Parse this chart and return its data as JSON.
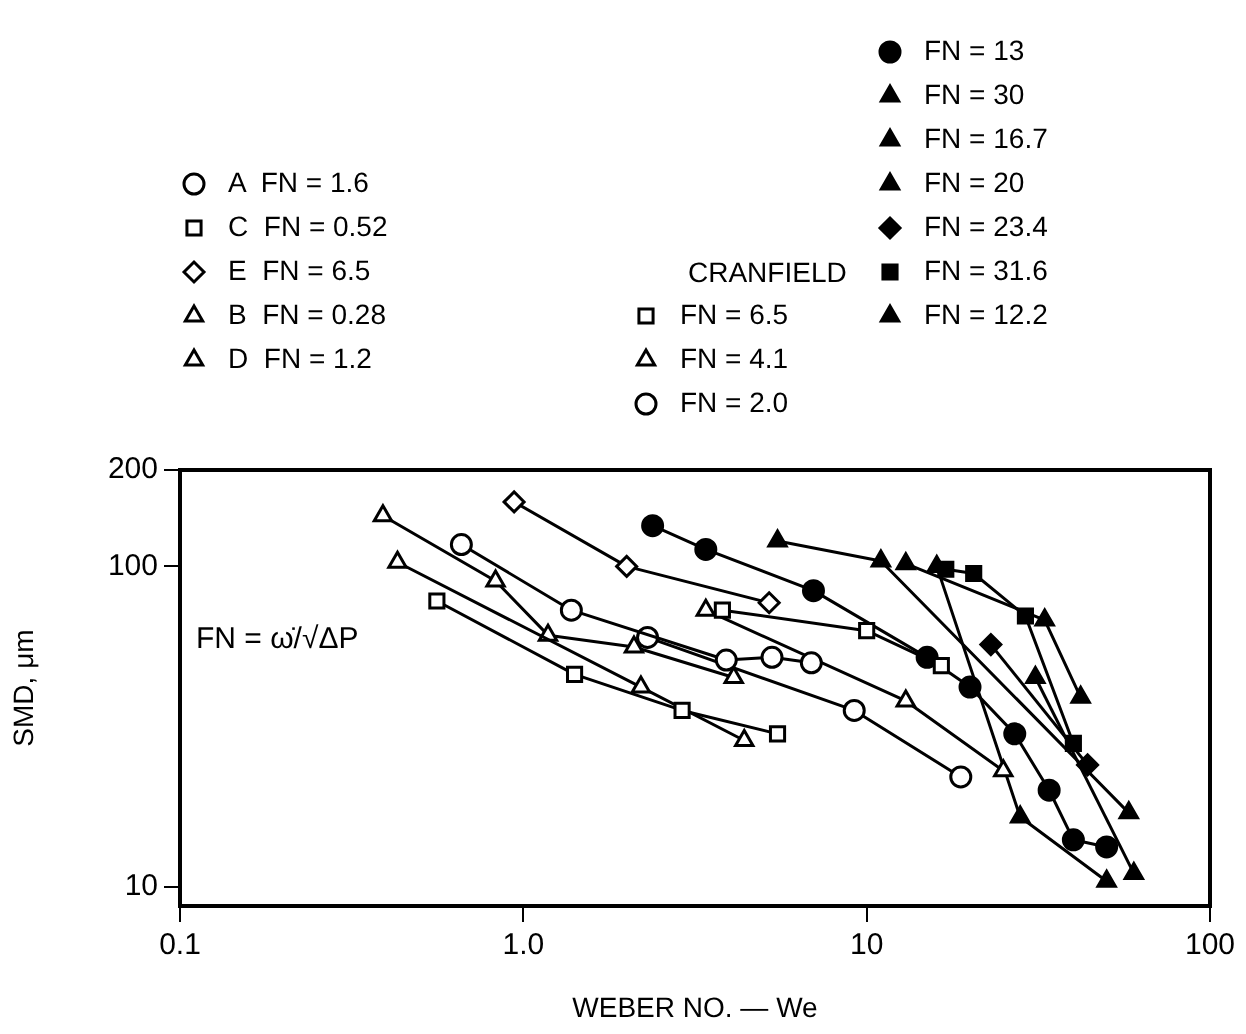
{
  "chart_data": {
    "type": "line",
    "xlabel": "WEBER NO. — We",
    "ylabel": "SMD, μm",
    "log": "xy",
    "xlim": [
      0.1,
      100
    ],
    "ylim": [
      8.7,
      200
    ],
    "xticks": [
      0.1,
      {
        "value": 1,
        "label": "1.0"
      },
      10,
      100
    ],
    "yticks": [
      10,
      100,
      200
    ],
    "grid": false,
    "legend": "top",
    "annotations": [
      "CRANFIELD",
      "FN = ω̇/√ΔP"
    ],
    "series": [
      {
        "name": "A  FN = 1.6",
        "color": "#ffffff",
        "marker": "circle",
        "x": [
          0.66,
          1.38,
          3.9,
          5.3,
          6.9
        ],
        "values": [
          117,
          73,
          51,
          52,
          50
        ]
      },
      {
        "name": "C  FN = 0.52",
        "color": "#ffffff",
        "marker": "square",
        "x": [
          0.56,
          1.41,
          2.9,
          5.5
        ],
        "values": [
          78,
          46,
          35.5,
          30
        ]
      },
      {
        "name": "E  FN = 6.5",
        "color": "#ffffff",
        "marker": "diamond",
        "x": [
          0.94,
          2,
          5.2
        ],
        "values": [
          159,
          100,
          77
        ]
      },
      {
        "name": "B  FN = 0.28",
        "color": "#ffffff",
        "marker": "triangle",
        "x": [
          0.43,
          2.2,
          4.4
        ],
        "values": [
          103,
          42,
          28.6
        ]
      },
      {
        "name": "D  FN = 1.2",
        "color": "#ffffff",
        "marker": "triangle",
        "x": [
          0.39,
          0.83,
          1.18,
          2.1,
          4.1
        ],
        "values": [
          144,
          90,
          61,
          56,
          45
        ]
      },
      {
        "name": "FN = 6.5",
        "color": "#ffffff",
        "marker": "square",
        "x": [
          3.8,
          10,
          16.5
        ],
        "values": [
          73,
          63,
          49
        ]
      },
      {
        "name": "FN = 4.1",
        "color": "#ffffff",
        "marker": "triangle",
        "x": [
          3.4,
          13,
          25
        ],
        "values": [
          73,
          38,
          23
        ]
      },
      {
        "name": "FN = 2.0",
        "color": "#ffffff",
        "marker": "circle",
        "x": [
          2.3,
          9.2,
          18.8
        ],
        "values": [
          60,
          35.5,
          22
        ]
      },
      {
        "name": "FN = 13",
        "color": "#000000",
        "marker": "circle",
        "x": [
          2.38,
          3.4,
          7,
          15,
          20,
          27,
          34,
          40,
          50
        ],
        "values": [
          134,
          113,
          84,
          52,
          42,
          30,
          20,
          14,
          13.3
        ]
      },
      {
        "name": "FN = 30",
        "color": "#000000",
        "marker": "triangle",
        "x": [
          5.5,
          11,
          58
        ],
        "values": [
          120,
          104,
          17
        ]
      },
      {
        "name": "FN = 16.7",
        "color": "#000000",
        "marker": "triangle",
        "x": [
          16,
          28,
          50
        ],
        "values": [
          100,
          16.5,
          10.4
        ]
      },
      {
        "name": "FN = 20",
        "color": "#000000",
        "marker": "triangle",
        "x": [
          31,
          60
        ],
        "values": [
          45,
          11
        ]
      },
      {
        "name": "FN = 23.4",
        "color": "#000000",
        "marker": "diamond",
        "x": [
          23,
          44
        ],
        "values": [
          57,
          24
        ]
      },
      {
        "name": "FN = 31.6",
        "color": "#000000",
        "marker": "square",
        "x": [
          17,
          20.5,
          29,
          40
        ],
        "values": [
          98,
          95,
          70,
          28
        ]
      },
      {
        "name": "FN = 12.2",
        "color": "#000000",
        "marker": "triangle",
        "x": [
          13,
          33,
          42
        ],
        "values": [
          102,
          68,
          39
        ]
      }
    ]
  }
}
